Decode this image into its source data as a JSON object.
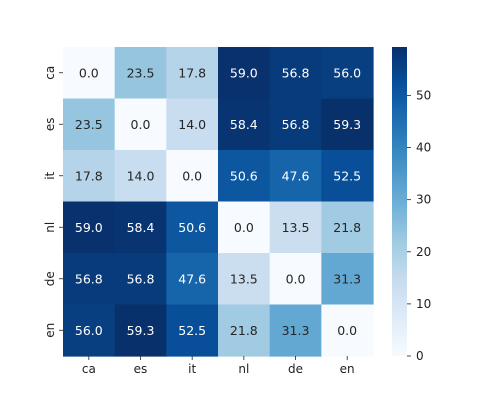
{
  "chart_data": {
    "type": "heatmap",
    "colormap": "Blues",
    "x_labels": [
      "ca",
      "es",
      "it",
      "nl",
      "de",
      "en"
    ],
    "y_labels": [
      "ca",
      "es",
      "it",
      "nl",
      "de",
      "en"
    ],
    "values": [
      [
        0.0,
        23.5,
        17.8,
        59.0,
        56.8,
        56.0
      ],
      [
        23.5,
        0.0,
        14.0,
        58.4,
        56.8,
        59.3
      ],
      [
        17.8,
        14.0,
        0.0,
        50.6,
        47.6,
        52.5
      ],
      [
        59.0,
        58.4,
        50.6,
        0.0,
        13.5,
        21.8
      ],
      [
        56.8,
        56.8,
        47.6,
        13.5,
        0.0,
        31.3
      ],
      [
        56.0,
        59.3,
        52.5,
        21.8,
        31.3,
        0.0
      ]
    ],
    "value_format": "0.0",
    "colorbar": {
      "range": [
        0,
        59.3
      ],
      "ticks": [
        0,
        10,
        20,
        30,
        40,
        50
      ],
      "placement": "right"
    }
  }
}
